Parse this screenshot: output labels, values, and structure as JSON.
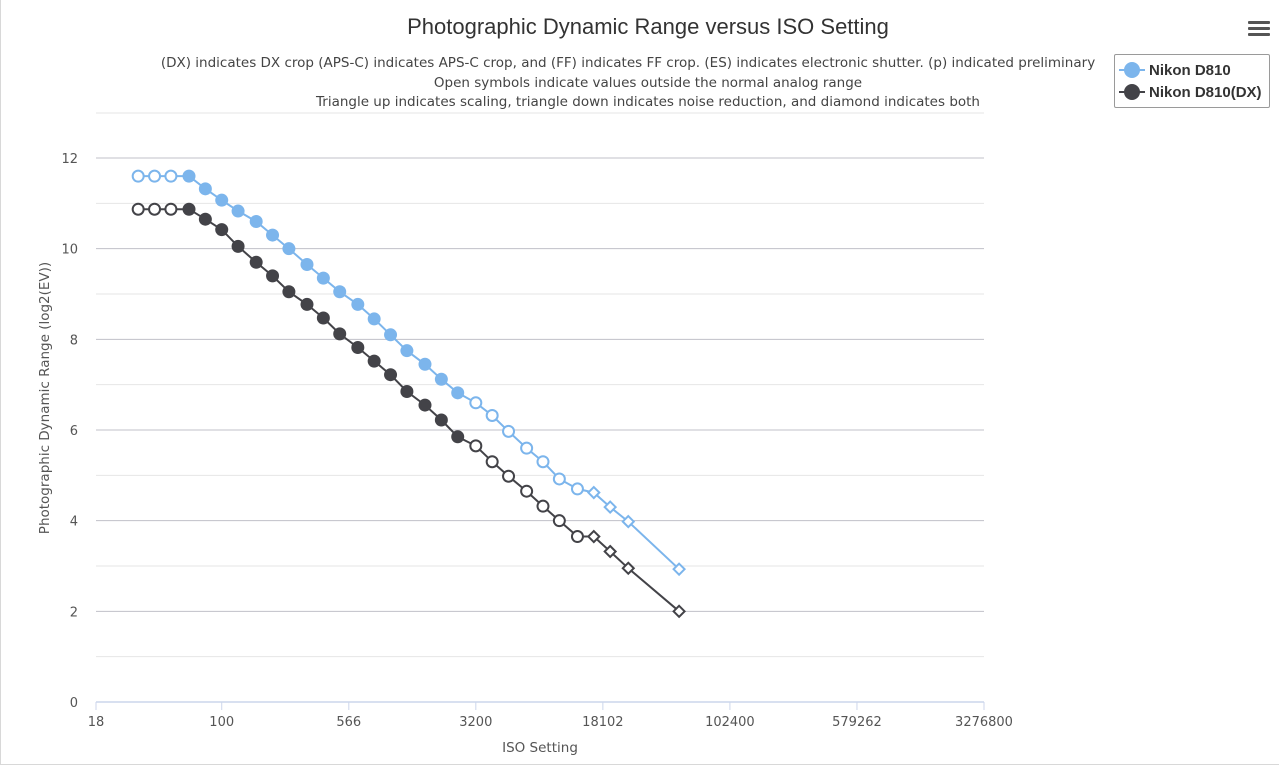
{
  "colors": {
    "series_1": "#7cb5ec",
    "series_2": "#434348",
    "axis_text": "#555555",
    "title_text": "#333333",
    "grid": "#c0c0c8",
    "minor_grid": "#e6e6e6",
    "axis_line": "#ccd6eb"
  },
  "menu": {
    "icon": "hamburger-menu-icon"
  },
  "legend": {
    "placement": "top-right",
    "items": [
      {
        "label": "Nikon D810"
      },
      {
        "label": "Nikon D810(DX)"
      }
    ]
  },
  "chart_data": {
    "type": "line",
    "title": "Photographic Dynamic Range versus ISO Setting",
    "subtitle": [
      "(DX) indicates DX crop (APS-C) indicates APS-C crop, and (FF) indicates FF crop. (ES) indicates electronic shutter. (p) indicated preliminary",
      "Open symbols indicate values outside the normal analog range",
      "Triangle up indicates scaling, triangle down indicates noise reduction, and diamond indicates both"
    ],
    "xlabel": "ISO Setting",
    "ylabel": "Photographic Dynamic Range (log2(EV))",
    "x_scale": "log",
    "x_ticks": [
      "18",
      "100",
      "566",
      "3200",
      "18102",
      "102400",
      "579262",
      "3276800"
    ],
    "y_ticks": [
      0,
      2,
      4,
      6,
      8,
      10,
      12
    ],
    "ylim": [
      0,
      12
    ],
    "grid": true,
    "series": [
      {
        "name": "Nikon D810",
        "points": [
          {
            "iso": 32,
            "dr": 11.6,
            "marker": "circle-open"
          },
          {
            "iso": 40,
            "dr": 11.6,
            "marker": "circle-open"
          },
          {
            "iso": 50,
            "dr": 11.6,
            "marker": "circle-open"
          },
          {
            "iso": 64,
            "dr": 11.6,
            "marker": "circle"
          },
          {
            "iso": 80,
            "dr": 11.32,
            "marker": "circle"
          },
          {
            "iso": 100,
            "dr": 11.07,
            "marker": "circle"
          },
          {
            "iso": 125,
            "dr": 10.83,
            "marker": "circle"
          },
          {
            "iso": 160,
            "dr": 10.6,
            "marker": "circle"
          },
          {
            "iso": 200,
            "dr": 10.3,
            "marker": "circle"
          },
          {
            "iso": 250,
            "dr": 10.0,
            "marker": "circle"
          },
          {
            "iso": 320,
            "dr": 9.65,
            "marker": "circle"
          },
          {
            "iso": 400,
            "dr": 9.35,
            "marker": "circle"
          },
          {
            "iso": 500,
            "dr": 9.05,
            "marker": "circle"
          },
          {
            "iso": 640,
            "dr": 8.77,
            "marker": "circle"
          },
          {
            "iso": 800,
            "dr": 8.45,
            "marker": "circle"
          },
          {
            "iso": 1000,
            "dr": 8.1,
            "marker": "circle"
          },
          {
            "iso": 1250,
            "dr": 7.75,
            "marker": "circle"
          },
          {
            "iso": 1600,
            "dr": 7.45,
            "marker": "circle"
          },
          {
            "iso": 2000,
            "dr": 7.12,
            "marker": "circle"
          },
          {
            "iso": 2500,
            "dr": 6.82,
            "marker": "circle"
          },
          {
            "iso": 3200,
            "dr": 6.6,
            "marker": "circle-open"
          },
          {
            "iso": 4000,
            "dr": 6.32,
            "marker": "circle-open"
          },
          {
            "iso": 5000,
            "dr": 5.97,
            "marker": "circle-open"
          },
          {
            "iso": 6400,
            "dr": 5.6,
            "marker": "circle-open"
          },
          {
            "iso": 8000,
            "dr": 5.3,
            "marker": "circle-open"
          },
          {
            "iso": 10000,
            "dr": 4.92,
            "marker": "circle-open"
          },
          {
            "iso": 12800,
            "dr": 4.7,
            "marker": "circle-open"
          },
          {
            "iso": 16000,
            "dr": 4.62,
            "marker": "diamond-open"
          },
          {
            "iso": 20000,
            "dr": 4.3,
            "marker": "diamond-open"
          },
          {
            "iso": 25600,
            "dr": 3.98,
            "marker": "diamond-open"
          },
          {
            "iso": 51200,
            "dr": 2.93,
            "marker": "diamond-open"
          }
        ]
      },
      {
        "name": "Nikon D810(DX)",
        "points": [
          {
            "iso": 32,
            "dr": 10.87,
            "marker": "circle-open"
          },
          {
            "iso": 40,
            "dr": 10.87,
            "marker": "circle-open"
          },
          {
            "iso": 50,
            "dr": 10.87,
            "marker": "circle-open"
          },
          {
            "iso": 64,
            "dr": 10.87,
            "marker": "circle"
          },
          {
            "iso": 80,
            "dr": 10.65,
            "marker": "circle"
          },
          {
            "iso": 100,
            "dr": 10.42,
            "marker": "circle"
          },
          {
            "iso": 125,
            "dr": 10.05,
            "marker": "circle"
          },
          {
            "iso": 160,
            "dr": 9.7,
            "marker": "circle"
          },
          {
            "iso": 200,
            "dr": 9.4,
            "marker": "circle"
          },
          {
            "iso": 250,
            "dr": 9.05,
            "marker": "circle"
          },
          {
            "iso": 320,
            "dr": 8.77,
            "marker": "circle"
          },
          {
            "iso": 400,
            "dr": 8.47,
            "marker": "circle"
          },
          {
            "iso": 500,
            "dr": 8.12,
            "marker": "circle"
          },
          {
            "iso": 640,
            "dr": 7.82,
            "marker": "circle"
          },
          {
            "iso": 800,
            "dr": 7.52,
            "marker": "circle"
          },
          {
            "iso": 1000,
            "dr": 7.22,
            "marker": "circle"
          },
          {
            "iso": 1250,
            "dr": 6.85,
            "marker": "circle"
          },
          {
            "iso": 1600,
            "dr": 6.55,
            "marker": "circle"
          },
          {
            "iso": 2000,
            "dr": 6.22,
            "marker": "circle"
          },
          {
            "iso": 2500,
            "dr": 5.85,
            "marker": "circle"
          },
          {
            "iso": 3200,
            "dr": 5.65,
            "marker": "circle-open"
          },
          {
            "iso": 4000,
            "dr": 5.3,
            "marker": "circle-open"
          },
          {
            "iso": 5000,
            "dr": 4.98,
            "marker": "circle-open"
          },
          {
            "iso": 6400,
            "dr": 4.65,
            "marker": "circle-open"
          },
          {
            "iso": 8000,
            "dr": 4.32,
            "marker": "circle-open"
          },
          {
            "iso": 10000,
            "dr": 4.0,
            "marker": "circle-open"
          },
          {
            "iso": 12800,
            "dr": 3.65,
            "marker": "circle-open"
          },
          {
            "iso": 16000,
            "dr": 3.65,
            "marker": "diamond-open"
          },
          {
            "iso": 20000,
            "dr": 3.32,
            "marker": "diamond-open"
          },
          {
            "iso": 25600,
            "dr": 2.95,
            "marker": "diamond-open"
          },
          {
            "iso": 51200,
            "dr": 2.0,
            "marker": "diamond-open"
          }
        ]
      }
    ]
  }
}
